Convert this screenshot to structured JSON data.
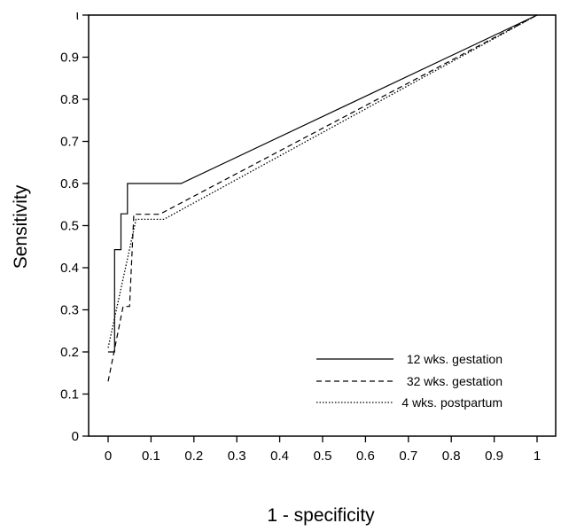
{
  "chart_data": {
    "type": "line",
    "xlabel": "1 - specificity",
    "ylabel": "Sensitivity",
    "xlim": [
      0,
      1
    ],
    "ylim": [
      0,
      1
    ],
    "x_ticks": [
      "0",
      "0.1",
      "0.2",
      "0.3",
      "0.4",
      "0.5",
      "0.6",
      "0.7",
      "0.8",
      "0.9",
      "1"
    ],
    "y_ticks": [
      "0",
      "0.1",
      "0.2",
      "0.3",
      "0.4",
      "0.5",
      "0.6",
      "0.7",
      "0.8",
      "0.9",
      "ι"
    ],
    "grid": false,
    "legend_position": "lower-right",
    "series": [
      {
        "name": "12 wks. gestation",
        "style": "solid",
        "color": "#000000",
        "points": [
          [
            0,
            0.2
          ],
          [
            0.015,
            0.2
          ],
          [
            0.015,
            0.443
          ],
          [
            0.03,
            0.443
          ],
          [
            0.03,
            0.528
          ],
          [
            0.045,
            0.528
          ],
          [
            0.045,
            0.6
          ],
          [
            0.17,
            0.6
          ],
          [
            1,
            1
          ]
        ]
      },
      {
        "name": "32 wks. gestation",
        "style": "dashed",
        "color": "#000000",
        "points": [
          [
            0,
            0.13
          ],
          [
            0.035,
            0.308
          ],
          [
            0.05,
            0.308
          ],
          [
            0.06,
            0.527
          ],
          [
            0.12,
            0.527
          ],
          [
            1,
            1
          ]
        ]
      },
      {
        "name": "4 wks. postpartum",
        "style": "dotted",
        "color": "#000000",
        "points": [
          [
            0,
            0.21
          ],
          [
            0.065,
            0.515
          ],
          [
            0.13,
            0.515
          ],
          [
            1,
            1
          ]
        ]
      }
    ]
  }
}
